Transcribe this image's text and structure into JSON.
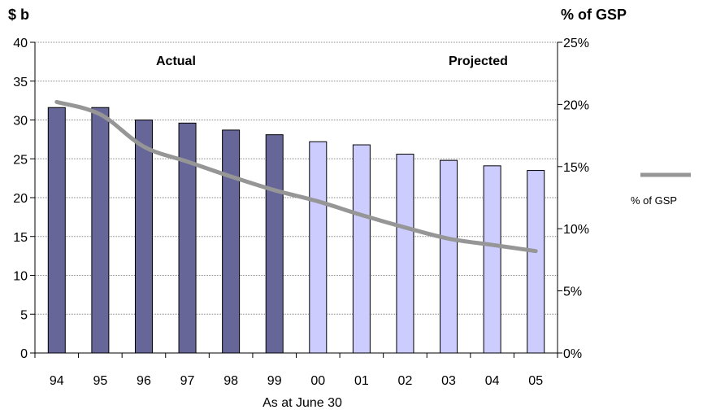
{
  "chart_data": {
    "type": "bar",
    "categories": [
      "94",
      "95",
      "96",
      "97",
      "98",
      "99",
      "00",
      "01",
      "02",
      "03",
      "04",
      "05"
    ],
    "series": [
      {
        "name": "",
        "axis": "left",
        "values": [
          31.6,
          31.6,
          30.0,
          29.6,
          28.7,
          28.1,
          27.2,
          26.8,
          25.6,
          24.8,
          24.1,
          23.5
        ],
        "colors": [
          "#666699",
          "#666699",
          "#666699",
          "#666699",
          "#666699",
          "#666699",
          "#ccccff",
          "#ccccff",
          "#ccccff",
          "#ccccff",
          "#ccccff",
          "#ccccff"
        ]
      },
      {
        "name": "% of GSP",
        "type": "line",
        "axis": "right",
        "values": [
          20.2,
          19.2,
          16.6,
          15.4,
          14.2,
          13.1,
          12.2,
          11.1,
          10.1,
          9.2,
          8.7,
          8.2
        ],
        "color": "#969696"
      }
    ],
    "left_axis": {
      "label": "$ b",
      "ylim": [
        0,
        40
      ],
      "ticks": [
        "0",
        "5",
        "10",
        "15",
        "20",
        "25",
        "30",
        "35",
        "40"
      ]
    },
    "right_axis": {
      "label": "% of GSP",
      "ylim": [
        0,
        25
      ],
      "ticks": [
        "0%",
        "5%",
        "10%",
        "15%",
        "20%",
        "25%"
      ]
    },
    "xlabel": "As at June 30",
    "annotations": [
      "Actual",
      "Projected"
    ],
    "legend": {
      "position": "right",
      "entries": [
        "% of GSP"
      ]
    },
    "grid": true
  }
}
